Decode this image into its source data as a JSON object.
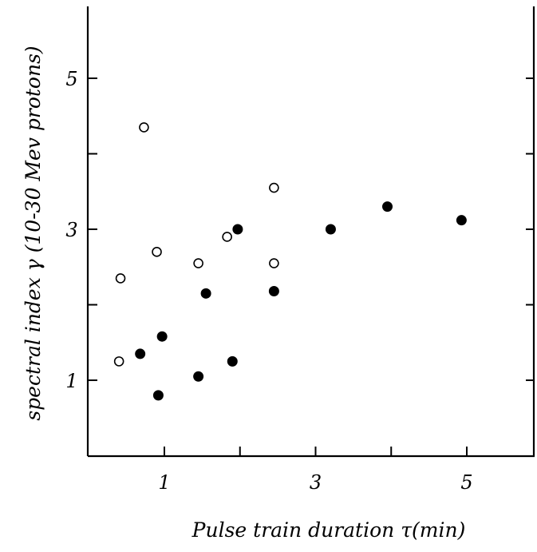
{
  "chart_data": {
    "type": "scatter",
    "title": "",
    "xlabel": "Pulse train duration τ(min)",
    "ylabel": "spectral index γ (10-30 Mev protons)",
    "xlim": [
      0,
      5.9
    ],
    "ylim": [
      0,
      6
    ],
    "x_ticks": [
      {
        "value": 1,
        "label": "1"
      },
      {
        "value": 2,
        "label": ""
      },
      {
        "value": 3,
        "label": "3"
      },
      {
        "value": 4,
        "label": ""
      },
      {
        "value": 5,
        "label": "5"
      }
    ],
    "y_ticks": [
      {
        "value": 1,
        "label": "1"
      },
      {
        "value": 2,
        "label": ""
      },
      {
        "value": 3,
        "label": "3"
      },
      {
        "value": 4,
        "label": ""
      },
      {
        "value": 5,
        "label": "5"
      }
    ],
    "grid": false,
    "series": [
      {
        "marker": "open-circle",
        "points": [
          {
            "x": 0.4,
            "y": 1.25
          },
          {
            "x": 0.42,
            "y": 2.35
          },
          {
            "x": 0.73,
            "y": 4.35
          },
          {
            "x": 0.9,
            "y": 2.7
          },
          {
            "x": 1.45,
            "y": 2.55
          },
          {
            "x": 1.83,
            "y": 2.9
          },
          {
            "x": 2.45,
            "y": 2.55
          },
          {
            "x": 2.45,
            "y": 3.55
          }
        ]
      },
      {
        "marker": "filled-circle",
        "points": [
          {
            "x": 0.68,
            "y": 1.35
          },
          {
            "x": 0.92,
            "y": 0.8
          },
          {
            "x": 0.97,
            "y": 1.58
          },
          {
            "x": 1.45,
            "y": 1.05
          },
          {
            "x": 1.55,
            "y": 2.15
          },
          {
            "x": 1.9,
            "y": 1.25
          },
          {
            "x": 1.97,
            "y": 3.0
          },
          {
            "x": 2.45,
            "y": 2.18
          },
          {
            "x": 3.2,
            "y": 3.0
          },
          {
            "x": 3.95,
            "y": 3.3
          },
          {
            "x": 4.93,
            "y": 3.12
          }
        ]
      }
    ]
  }
}
